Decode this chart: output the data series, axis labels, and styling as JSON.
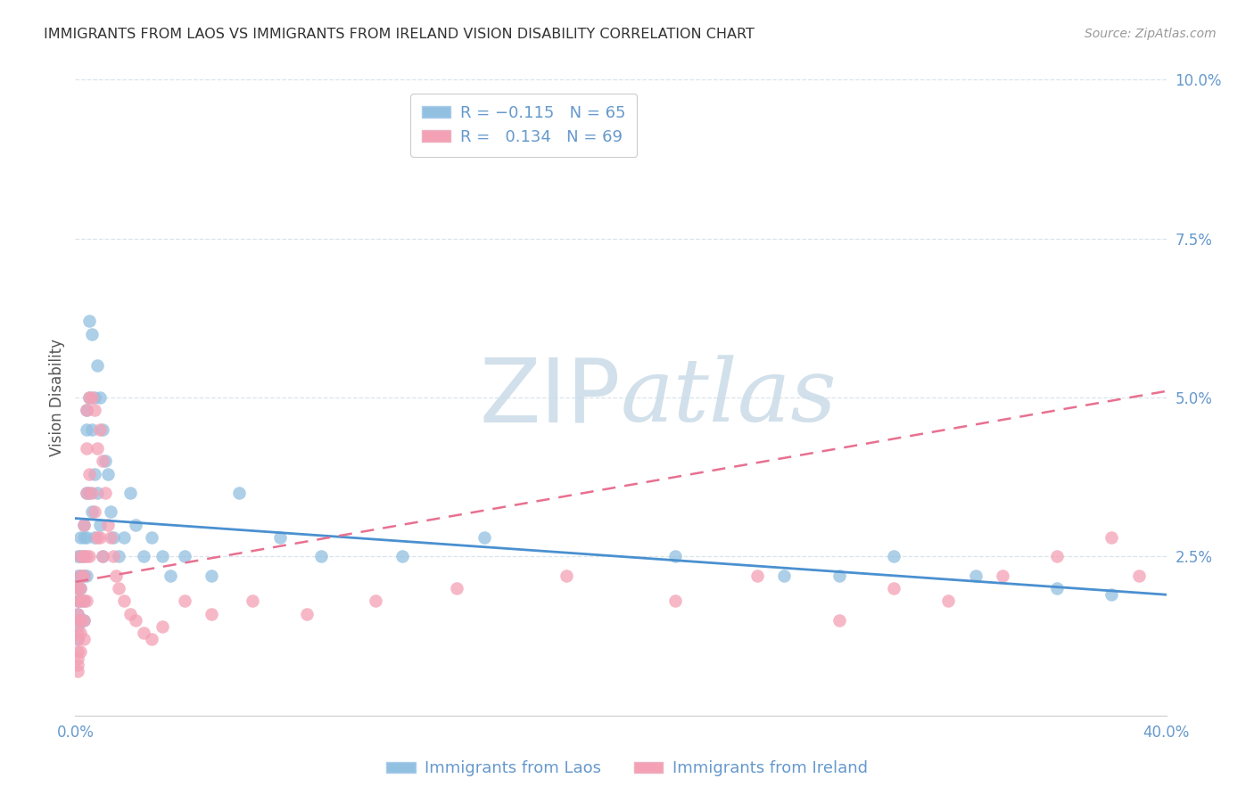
{
  "title": "IMMIGRANTS FROM LAOS VS IMMIGRANTS FROM IRELAND VISION DISABILITY CORRELATION CHART",
  "source": "Source: ZipAtlas.com",
  "ylabel": "Vision Disability",
  "xlim": [
    0.0,
    0.4
  ],
  "ylim": [
    0.0,
    0.1
  ],
  "xticks": [
    0.0,
    0.1,
    0.2,
    0.3,
    0.4
  ],
  "xticklabels": [
    "0.0%",
    "",
    "",
    "",
    "40.0%"
  ],
  "yticks": [
    0.0,
    0.025,
    0.05,
    0.075,
    0.1
  ],
  "yticklabels": [
    "",
    "2.5%",
    "5.0%",
    "7.5%",
    "10.0%"
  ],
  "laos_color": "#92c0e0",
  "ireland_color": "#f4a0b5",
  "laos_line_color": "#4a90d0",
  "ireland_line_color": "#e87090",
  "watermark_color": "#ccdde8",
  "background_color": "#ffffff",
  "grid_color": "#d8e4ec",
  "tick_color": "#6699cc",
  "title_color": "#333333",
  "source_color": "#999999",
  "ylabel_color": "#555555",
  "laos_x": [
    0.001,
    0.001,
    0.001,
    0.001,
    0.001,
    0.001,
    0.001,
    0.002,
    0.002,
    0.002,
    0.002,
    0.002,
    0.002,
    0.003,
    0.003,
    0.003,
    0.003,
    0.003,
    0.003,
    0.004,
    0.004,
    0.004,
    0.004,
    0.004,
    0.005,
    0.005,
    0.005,
    0.006,
    0.006,
    0.006,
    0.007,
    0.007,
    0.007,
    0.008,
    0.008,
    0.009,
    0.009,
    0.01,
    0.01,
    0.011,
    0.012,
    0.013,
    0.014,
    0.016,
    0.018,
    0.02,
    0.022,
    0.025,
    0.028,
    0.032,
    0.035,
    0.04,
    0.05,
    0.06,
    0.075,
    0.09,
    0.12,
    0.15,
    0.22,
    0.26,
    0.28,
    0.3,
    0.33,
    0.36,
    0.38
  ],
  "laos_y": [
    0.025,
    0.022,
    0.02,
    0.018,
    0.016,
    0.014,
    0.012,
    0.028,
    0.025,
    0.022,
    0.02,
    0.018,
    0.015,
    0.03,
    0.028,
    0.025,
    0.022,
    0.018,
    0.015,
    0.048,
    0.045,
    0.035,
    0.028,
    0.022,
    0.062,
    0.05,
    0.035,
    0.06,
    0.045,
    0.032,
    0.05,
    0.038,
    0.028,
    0.055,
    0.035,
    0.05,
    0.03,
    0.045,
    0.025,
    0.04,
    0.038,
    0.032,
    0.028,
    0.025,
    0.028,
    0.035,
    0.03,
    0.025,
    0.028,
    0.025,
    0.022,
    0.025,
    0.022,
    0.035,
    0.028,
    0.025,
    0.025,
    0.028,
    0.025,
    0.022,
    0.022,
    0.025,
    0.022,
    0.02,
    0.019
  ],
  "ireland_x": [
    0.001,
    0.001,
    0.001,
    0.001,
    0.001,
    0.001,
    0.001,
    0.001,
    0.001,
    0.001,
    0.002,
    0.002,
    0.002,
    0.002,
    0.002,
    0.002,
    0.002,
    0.003,
    0.003,
    0.003,
    0.003,
    0.003,
    0.003,
    0.004,
    0.004,
    0.004,
    0.004,
    0.004,
    0.005,
    0.005,
    0.005,
    0.006,
    0.006,
    0.007,
    0.007,
    0.008,
    0.008,
    0.009,
    0.009,
    0.01,
    0.01,
    0.011,
    0.012,
    0.013,
    0.014,
    0.015,
    0.016,
    0.018,
    0.02,
    0.022,
    0.025,
    0.028,
    0.032,
    0.04,
    0.05,
    0.065,
    0.085,
    0.11,
    0.14,
    0.18,
    0.22,
    0.25,
    0.28,
    0.3,
    0.32,
    0.34,
    0.36,
    0.38,
    0.39
  ],
  "ireland_y": [
    0.02,
    0.018,
    0.016,
    0.015,
    0.013,
    0.012,
    0.01,
    0.009,
    0.008,
    0.007,
    0.025,
    0.022,
    0.02,
    0.018,
    0.015,
    0.013,
    0.01,
    0.03,
    0.025,
    0.022,
    0.018,
    0.015,
    0.012,
    0.048,
    0.042,
    0.035,
    0.025,
    0.018,
    0.05,
    0.038,
    0.025,
    0.05,
    0.035,
    0.048,
    0.032,
    0.042,
    0.028,
    0.045,
    0.028,
    0.04,
    0.025,
    0.035,
    0.03,
    0.028,
    0.025,
    0.022,
    0.02,
    0.018,
    0.016,
    0.015,
    0.013,
    0.012,
    0.014,
    0.018,
    0.016,
    0.018,
    0.016,
    0.018,
    0.02,
    0.022,
    0.018,
    0.022,
    0.015,
    0.02,
    0.018,
    0.022,
    0.025,
    0.028,
    0.022
  ],
  "laos_line_x": [
    0.0,
    0.4
  ],
  "laos_line_y": [
    0.031,
    0.019
  ],
  "ireland_line_x": [
    0.0,
    0.4
  ],
  "ireland_line_y": [
    0.021,
    0.051
  ]
}
